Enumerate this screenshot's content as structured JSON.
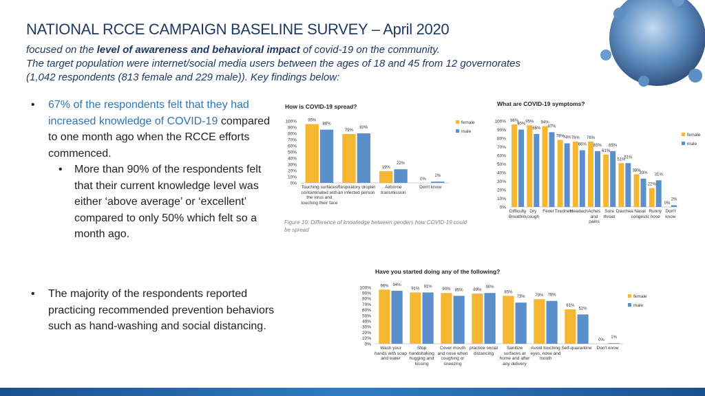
{
  "header": {
    "title": "NATIONAL RCCE CAMPAIGN BASELINE SURVEY – April 2020",
    "subtitle": {
      "line1_before": "focused on the ",
      "line1_emphasis": "level of awareness and behavioral impact",
      "line1_after": " of covid-19 on the community.",
      "line2": "The target population were internet/social media users between the ages of 18 and 45 from 12 governorates",
      "line3": "(1,042 respondents (813 female and 229 male)). Key findings below:"
    }
  },
  "bullets": {
    "first_highlight": "67% of the respondents felt that they had increased knowledge of COVID-19",
    "first_rest": "compared to one month ago when the RCCE efforts commenced.",
    "first_sub": "More than 90% of the respondents felt that their current knowledge level was either ‘above average’ or ‘excellent’ compared to only 50% which felt so a month ago.",
    "second": "The majority of the respondents reported practicing recommended prevention behaviors such as hand-washing and social distancing."
  },
  "chart_data": [
    {
      "type": "bar",
      "title": "How is COVID-19 spread?",
      "caption": "Figure 10: Difference of knowledge between genders how COVID-19 could be spread",
      "categories": [
        "Touching surfaces contaminated with the virus and touching their face",
        "Respiratory droplet an infected person",
        "Airborne transmission",
        "Don't know"
      ],
      "series": [
        {
          "name": "female",
          "color": "#f5b731",
          "values": [
            95,
            79,
            19,
            0
          ],
          "value_labels": [
            "95%",
            "79%",
            "19%",
            "0%"
          ]
        },
        {
          "name": "male",
          "color": "#5b8fc9",
          "values": [
            86,
            80,
            22,
            2
          ],
          "value_labels": [
            "86%",
            "80%",
            "22%",
            "2%"
          ]
        }
      ],
      "ylim": [
        0,
        100
      ],
      "yticks": [
        {
          "value": 0,
          "label": "0%"
        },
        {
          "value": 10,
          "label": "10%"
        },
        {
          "value": 20,
          "label": "20%"
        },
        {
          "value": 30,
          "label": "30%"
        },
        {
          "value": 40,
          "label": "40%"
        },
        {
          "value": 50,
          "label": "50%"
        },
        {
          "value": 60,
          "label": "60%"
        },
        {
          "value": 70,
          "label": "70%"
        },
        {
          "value": 80,
          "label": "80%"
        },
        {
          "value": 90,
          "label": "90%"
        },
        {
          "value": 100,
          "label": "100%"
        }
      ]
    },
    {
      "type": "bar",
      "title": "What are COVID-19 symptoms?",
      "categories": [
        "Difficulty Breathing",
        "Dry cough",
        "Fever",
        "Tiredness",
        "Headache",
        "Aches and pains",
        "Sore throat",
        "Diarrhea",
        "Nasal congestion",
        "Runny nose",
        "Don't know"
      ],
      "series": [
        {
          "name": "female",
          "color": "#f5b731",
          "values": [
            96,
            95,
            94,
            78,
            76,
            76,
            61,
            51,
            38,
            22,
            0
          ],
          "value_labels": [
            "96%",
            "95%",
            "94%",
            "78%",
            "76%",
            "76%",
            "61%",
            "51%",
            "38%",
            "22%",
            "0%"
          ]
        },
        {
          "name": "male",
          "color": "#5b8fc9",
          "values": [
            90,
            85,
            87,
            74,
            66,
            65,
            65,
            51,
            33,
            31,
            2
          ],
          "value_labels": [
            "90%",
            "85%",
            "87%",
            "74%",
            "66%",
            "65%",
            "65%",
            "51%",
            "33%",
            "31%",
            "2%"
          ]
        }
      ],
      "ylim": [
        0,
        100
      ],
      "yticks": [
        {
          "value": 0,
          "label": "0%"
        },
        {
          "value": 10,
          "label": "10%"
        },
        {
          "value": 20,
          "label": "20%"
        },
        {
          "value": 30,
          "label": "30%"
        },
        {
          "value": 40,
          "label": "40%"
        },
        {
          "value": 50,
          "label": "50%"
        },
        {
          "value": 60,
          "label": "60%"
        },
        {
          "value": 70,
          "label": "70%"
        },
        {
          "value": 80,
          "label": "80%"
        },
        {
          "value": 90,
          "label": "90%"
        },
        {
          "value": 100,
          "label": "100%"
        }
      ]
    },
    {
      "type": "bar",
      "title": "Have you started doing any of the following?",
      "categories": [
        "Wash your hands with soap and water",
        "Stop handshaking hugging and kissing",
        "Cover mouth and nose when coughing or sneezing",
        "practice social distancing",
        "Sanitize surfaces at home and after any delivery",
        "Avoid touching eyes, nose and mouth",
        "Self-quarantine",
        "Don't know"
      ],
      "series": [
        {
          "name": "female",
          "color": "#f5b731",
          "values": [
            96,
            91,
            90,
            89,
            85,
            79,
            61,
            0
          ],
          "value_labels": [
            "96%",
            "91%",
            "90%",
            "89%",
            "85%",
            "79%",
            "61%",
            "0%"
          ]
        },
        {
          "name": "male",
          "color": "#5b8fc9",
          "values": [
            94,
            91,
            85,
            90,
            73,
            76,
            52,
            1
          ],
          "value_labels": [
            "94%",
            "91%",
            "85%",
            "90%",
            "73%",
            "76%",
            "52%",
            "1%"
          ]
        }
      ],
      "ylim": [
        0,
        100
      ],
      "yticks": [
        {
          "value": 0,
          "label": "0%"
        },
        {
          "value": 10,
          "label": "10%"
        },
        {
          "value": 20,
          "label": "20%"
        },
        {
          "value": 30,
          "label": "30%"
        },
        {
          "value": 40,
          "label": "40%"
        },
        {
          "value": 50,
          "label": "50%"
        },
        {
          "value": 60,
          "label": "60%"
        },
        {
          "value": 70,
          "label": "70%"
        },
        {
          "value": 80,
          "label": "80%"
        },
        {
          "value": 90,
          "label": "90%"
        },
        {
          "value": 100,
          "label": "100%"
        }
      ]
    }
  ]
}
